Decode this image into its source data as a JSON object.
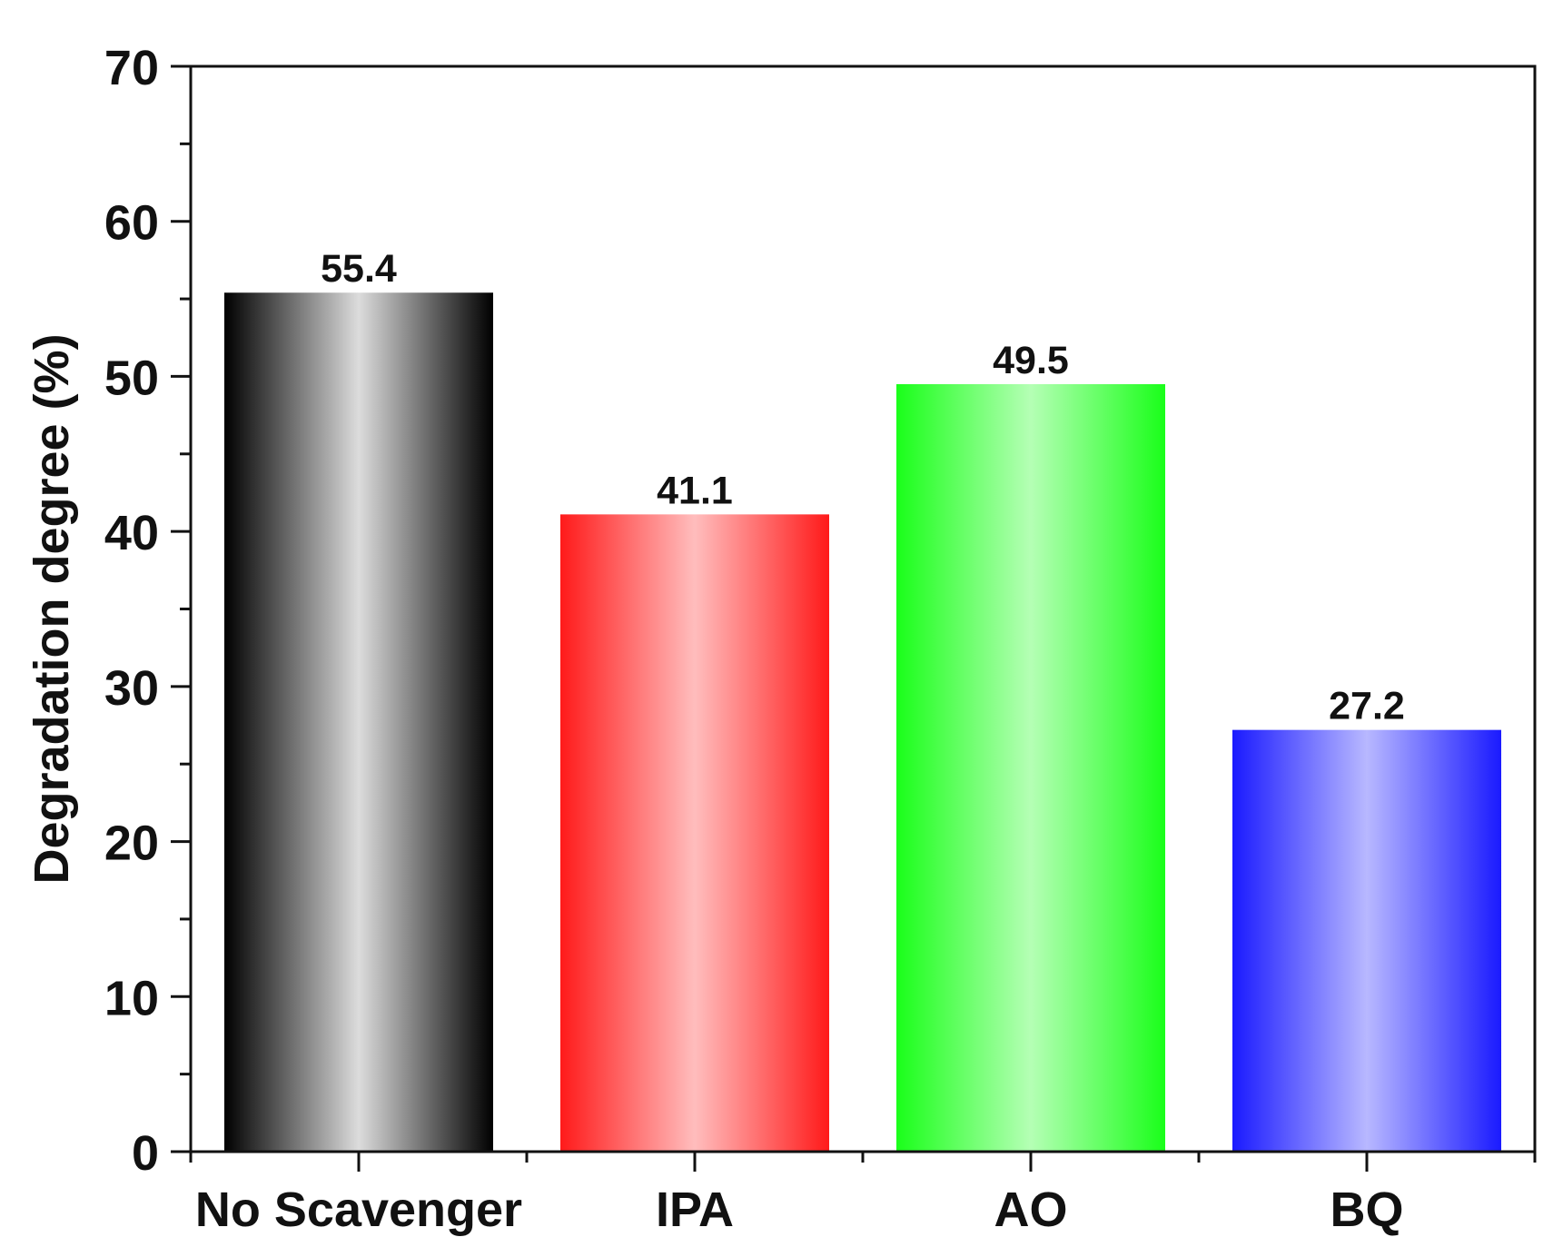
{
  "chart_data": {
    "type": "bar",
    "title": "",
    "xlabel": "",
    "ylabel": "Degradation degree (%)",
    "categories": [
      "No Scavenger",
      "IPA",
      "AO",
      "BQ"
    ],
    "values": [
      55.4,
      41.1,
      49.5,
      27.2
    ],
    "value_labels": [
      "55.4",
      "41.1",
      "49.5",
      "27.2"
    ],
    "ylim": [
      0,
      70
    ],
    "yticks": [
      0,
      10,
      20,
      30,
      40,
      50,
      60,
      70
    ],
    "ytick_labels": [
      "0",
      "10",
      "20",
      "30",
      "40",
      "50",
      "60",
      "70"
    ],
    "grid": false,
    "legend": "none",
    "bar_colors": [
      {
        "edge": "#000000",
        "center": "#dcdcdc"
      },
      {
        "edge": "#ff1a1a",
        "center": "#ffbdbd"
      },
      {
        "edge": "#1aff1a",
        "center": "#b5ffb5"
      },
      {
        "edge": "#1a1aff",
        "center": "#b8b8ff"
      }
    ]
  }
}
